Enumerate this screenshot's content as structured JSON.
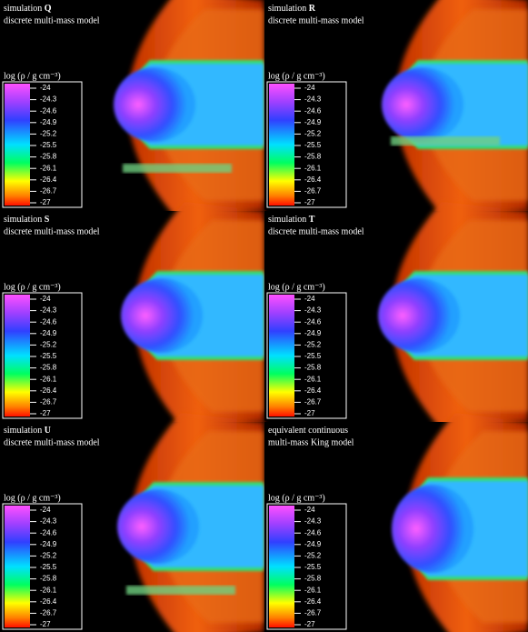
{
  "panels": [
    {
      "title": "simulation",
      "id": "Q",
      "subtitle": "discrete multi-mass model"
    },
    {
      "title": "simulation",
      "id": "R",
      "subtitle": "discrete multi-mass model"
    },
    {
      "title": "simulation",
      "id": "S",
      "subtitle": "discrete multi-mass model"
    },
    {
      "title": "simulation",
      "id": "T",
      "subtitle": "discrete multi-mass model"
    },
    {
      "title": "simulation",
      "id": "U",
      "subtitle": "discrete multi-mass model"
    },
    {
      "title": "equivalent continuous",
      "subtitle": "multi-mass King model"
    }
  ],
  "colorbar": {
    "label": "log (ρ / g cm⁻³)",
    "ticks": [
      -24,
      -24.3,
      -24.6,
      -24.9,
      -25.2,
      -25.5,
      -25.8,
      -26.1,
      -26.4,
      -26.7,
      -27
    ],
    "range": [
      -24,
      -27
    ]
  }
}
